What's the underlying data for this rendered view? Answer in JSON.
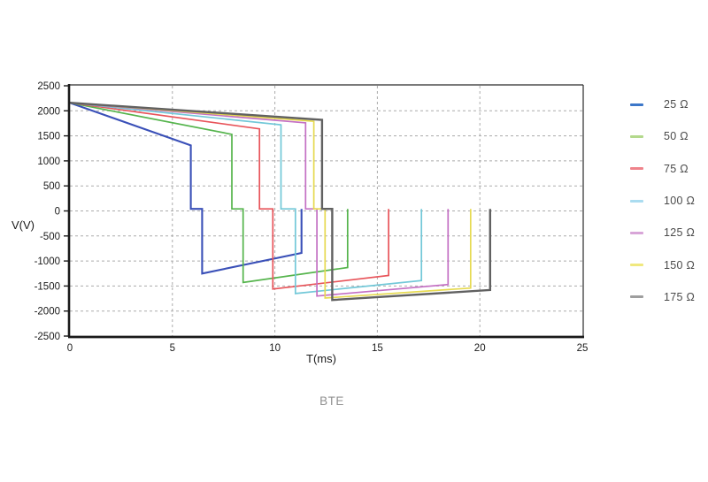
{
  "page": {
    "background": "#ffffff"
  },
  "chart_data": {
    "type": "line",
    "caption": "BTE",
    "xlabel": "T(ms)",
    "ylabel": "V(V)",
    "xlim": [
      0,
      25
    ],
    "ylim": [
      -2500,
      2500
    ],
    "xticks": [
      0,
      5,
      10,
      15,
      20,
      25
    ],
    "yticks": [
      2500,
      2000,
      1500,
      1000,
      500,
      0,
      -500,
      -1000,
      -1500,
      -2000,
      -2500
    ],
    "grid": {
      "on": true,
      "color": "#ababab",
      "dash": "3,3",
      "x_values": [
        5,
        10,
        15,
        20
      ],
      "y_values": [
        2000,
        1500,
        1000,
        500,
        0,
        -500,
        -1000,
        -1500,
        -2000
      ]
    },
    "axis_color": "#1a1a1a",
    "tick_label_color": "#1a1a1a",
    "legend_position": "right",
    "series": [
      {
        "name": "25 Ω",
        "color": "#3a50b8",
        "legend_color": "#3c77c9",
        "width": 2.1,
        "points": [
          [
            0,
            2160
          ],
          [
            5.9,
            1310
          ],
          [
            5.9,
            40
          ],
          [
            6.45,
            40
          ],
          [
            6.45,
            -1250
          ],
          [
            11.3,
            -840
          ],
          [
            11.3,
            40
          ]
        ]
      },
      {
        "name": "50 Ω",
        "color": "#55b44c",
        "legend_color": "#b3d98c",
        "width": 1.7,
        "points": [
          [
            0,
            2160
          ],
          [
            7.9,
            1530
          ],
          [
            7.9,
            40
          ],
          [
            8.45,
            40
          ],
          [
            8.45,
            -1430
          ],
          [
            13.55,
            -1130
          ],
          [
            13.55,
            40
          ]
        ]
      },
      {
        "name": "75 Ω",
        "color": "#e8545a",
        "legend_color": "#ef838b",
        "width": 1.7,
        "points": [
          [
            0,
            2160
          ],
          [
            9.25,
            1640
          ],
          [
            9.25,
            40
          ],
          [
            9.9,
            40
          ],
          [
            9.9,
            -1560
          ],
          [
            15.55,
            -1290
          ],
          [
            15.55,
            40
          ]
        ]
      },
      {
        "name": "100 Ω",
        "color": "#72c8d8",
        "legend_color": "#aadcf0",
        "width": 1.7,
        "points": [
          [
            0,
            2160
          ],
          [
            10.3,
            1720
          ],
          [
            10.3,
            40
          ],
          [
            11.0,
            40
          ],
          [
            11.0,
            -1650
          ],
          [
            17.15,
            -1390
          ],
          [
            17.15,
            40
          ]
        ]
      },
      {
        "name": "125 Ω",
        "color": "#c470c4",
        "legend_color": "#d8a5d8",
        "width": 1.7,
        "points": [
          [
            0,
            2160
          ],
          [
            11.5,
            1760
          ],
          [
            11.5,
            40
          ],
          [
            12.05,
            40
          ],
          [
            12.05,
            -1700
          ],
          [
            18.45,
            -1470
          ],
          [
            18.45,
            40
          ]
        ]
      },
      {
        "name": "150 Ω",
        "color": "#e6da50",
        "legend_color": "#f0e87e",
        "width": 1.7,
        "points": [
          [
            0,
            2160
          ],
          [
            11.9,
            1790
          ],
          [
            11.9,
            40
          ],
          [
            12.45,
            40
          ],
          [
            12.45,
            -1740
          ],
          [
            19.55,
            -1540
          ],
          [
            19.55,
            40
          ]
        ]
      },
      {
        "name": "175 Ω",
        "color": "#616161",
        "legend_color": "#9e9e9e",
        "width": 2.4,
        "points": [
          [
            0,
            2160
          ],
          [
            12.3,
            1820
          ],
          [
            12.3,
            40
          ],
          [
            12.8,
            40
          ],
          [
            12.8,
            -1780
          ],
          [
            20.5,
            -1580
          ],
          [
            20.5,
            40
          ]
        ]
      }
    ]
  }
}
